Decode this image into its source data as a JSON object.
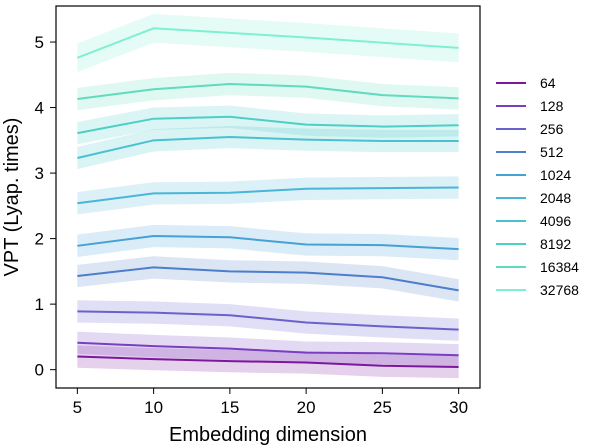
{
  "chart_data": {
    "type": "line",
    "title": "",
    "xlabel": "Embedding dimension",
    "ylabel": "VPT (Lyap. times)",
    "x": [
      5,
      10,
      15,
      20,
      25,
      30
    ],
    "xticks": [
      "5",
      "10",
      "15",
      "20",
      "25",
      "30"
    ],
    "yticks": [
      "0",
      "1",
      "2",
      "3",
      "4",
      "5"
    ],
    "xlim": [
      3.6,
      31.4
    ],
    "ylim": [
      -0.28,
      5.55
    ],
    "grid": false,
    "legend_position": "right",
    "series": [
      {
        "name": "64",
        "color": "#7b189e",
        "values": [
          0.2,
          0.16,
          0.13,
          0.11,
          0.06,
          0.04
        ],
        "band": 0.17
      },
      {
        "name": "128",
        "color": "#7a3fc1",
        "values": [
          0.41,
          0.36,
          0.32,
          0.26,
          0.25,
          0.22
        ],
        "band": 0.17
      },
      {
        "name": "256",
        "color": "#6a61cc",
        "values": [
          0.89,
          0.87,
          0.83,
          0.72,
          0.66,
          0.61
        ],
        "band": 0.17
      },
      {
        "name": "512",
        "color": "#4c7ec9",
        "values": [
          1.43,
          1.56,
          1.5,
          1.48,
          1.41,
          1.21
        ],
        "band": 0.17
      },
      {
        "name": "1024",
        "color": "#45a1d6",
        "values": [
          1.89,
          2.04,
          2.02,
          1.91,
          1.9,
          1.84
        ],
        "band": 0.17
      },
      {
        "name": "2048",
        "color": "#49b6d7",
        "values": [
          2.54,
          2.69,
          2.7,
          2.76,
          2.77,
          2.78
        ],
        "band": 0.17
      },
      {
        "name": "4096",
        "color": "#48c2cf",
        "values": [
          3.23,
          3.5,
          3.55,
          3.51,
          3.49,
          3.49
        ],
        "band": 0.17
      },
      {
        "name": "8192",
        "color": "#4bcfc7",
        "values": [
          3.61,
          3.83,
          3.86,
          3.74,
          3.71,
          3.73
        ],
        "band": 0.17
      },
      {
        "name": "16384",
        "color": "#5fdbc0",
        "values": [
          4.13,
          4.28,
          4.36,
          4.32,
          4.19,
          4.14
        ],
        "band": 0.17
      },
      {
        "name": "32768",
        "color": "#7ef0d2",
        "values": [
          4.76,
          5.21,
          5.14,
          5.07,
          4.99,
          4.91
        ],
        "band": 0.22
      }
    ]
  }
}
